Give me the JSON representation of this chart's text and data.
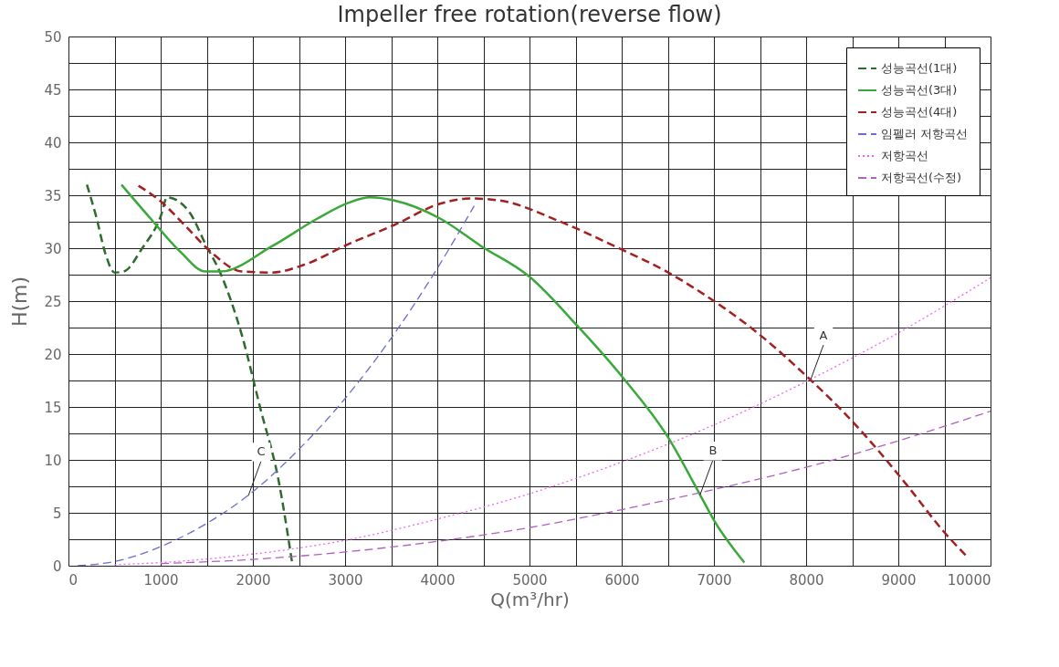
{
  "chart_data": {
    "type": "line",
    "title": "Impeller free rotation(reverse flow)",
    "xlabel": "Q(m³/hr)",
    "ylabel": "H(m)",
    "xlim": [
      0,
      10000
    ],
    "ylim": [
      0,
      50
    ],
    "xticks": [
      0,
      {
        "value": 500,
        "label": null
      },
      1000,
      {
        "value": 1500,
        "label": null
      },
      2000,
      {
        "value": 2500,
        "label": null
      },
      3000,
      {
        "value": 3500,
        "label": null
      },
      4000,
      {
        "value": 4500,
        "label": null
      },
      5000,
      {
        "value": 5500,
        "label": null
      },
      6000,
      {
        "value": 6500,
        "label": null
      },
      7000,
      {
        "value": 7500,
        "label": null
      },
      8000,
      {
        "value": 8500,
        "label": null
      },
      9000,
      {
        "value": 9500,
        "label": null
      },
      10000
    ],
    "yticks": [
      0,
      {
        "value": 2.5,
        "label": null
      },
      5,
      {
        "value": 7.5,
        "label": null
      },
      10,
      {
        "value": 12.5,
        "label": null
      },
      15,
      {
        "value": 17.5,
        "label": null
      },
      20,
      {
        "value": 22.5,
        "label": null
      },
      25,
      {
        "value": 27.5,
        "label": null
      },
      30,
      {
        "value": 32.5,
        "label": null
      },
      35,
      {
        "value": 37.5,
        "label": null
      },
      40,
      {
        "value": 42.5,
        "label": null
      },
      45,
      {
        "value": 47.5,
        "label": null
      },
      50
    ],
    "grid": true,
    "legend": "top right",
    "marker": "none",
    "series": [
      {
        "name": "성능곡선(1대)",
        "color": "#2e6b2e",
        "line_style": "dashed",
        "x": [
          200,
          300,
          400,
          500,
          600,
          800,
          1000,
          1070,
          1200,
          1320,
          1485,
          1650,
          1880,
          2080,
          2280,
          2425
        ],
        "values": [
          36,
          33,
          29.5,
          27.7,
          27.8,
          30,
          33,
          34.8,
          34.4,
          33.3,
          30.4,
          27.6,
          21.8,
          14.9,
          8,
          0.3
        ]
      },
      {
        "name": "성능곡선(3대)",
        "color": "#3aa83a",
        "line_style": "solid",
        "x": [
          574,
          890,
          1220,
          1485,
          1650,
          2210,
          2700,
          3040,
          3270,
          3535,
          4030,
          4475,
          5000,
          5515,
          6010,
          6505,
          6850,
          7000,
          7330
        ],
        "values": [
          36,
          32.8,
          29.6,
          27.8,
          27.8,
          30.2,
          32.8,
          34.3,
          34.8,
          34.5,
          32.8,
          30.2,
          27.3,
          22.7,
          17.8,
          12.1,
          6.7,
          4.3,
          0.3
        ]
      },
      {
        "name": "성능곡선(4대)",
        "color": "#a32020",
        "line_style": "dashed",
        "x": [
          760,
          990,
          1290,
          1550,
          1880,
          2210,
          2545,
          3040,
          3535,
          4030,
          4360,
          4680,
          5310,
          5920,
          6505,
          6950,
          7400,
          8030,
          8440,
          8810,
          9140,
          9475,
          9740
        ],
        "values": [
          35.9,
          34.5,
          31.9,
          29.6,
          27.8,
          27.7,
          28.4,
          30.4,
          32.2,
          34.2,
          34.7,
          34.5,
          32.6,
          30.2,
          27.7,
          25.3,
          22.5,
          17.7,
          14.2,
          10.6,
          7.1,
          3.4,
          0.9
        ]
      },
      {
        "name": "임펠러 저항곡선",
        "color": "#6b6bd0",
        "line_style": "dashed",
        "x": [
          100,
          500,
          1000,
          1500,
          2000,
          2500,
          3000,
          3500,
          4000,
          4400
        ],
        "values": [
          0,
          0.4,
          1.8,
          4,
          7,
          11,
          15.8,
          21.5,
          28.1,
          34
        ]
      },
      {
        "name": "저항곡선",
        "color": "#ee66ee",
        "line_style": "dotted",
        "x": [
          500,
          1000,
          2000,
          3000,
          4000,
          5000,
          6000,
          7000,
          8000,
          9000,
          10000
        ],
        "values": [
          0.1,
          0.3,
          1.1,
          2.4,
          4.4,
          6.8,
          9.8,
          13.3,
          17.4,
          22,
          27.2
        ]
      },
      {
        "name": "저항곡선(수정)",
        "color": "#b060c0",
        "line_style": "dashed",
        "x": [
          1000,
          2000,
          3000,
          4000,
          5000,
          6000,
          7000,
          8000,
          9000,
          10000
        ],
        "values": [
          0.2,
          0.6,
          1.3,
          2.3,
          3.6,
          5.3,
          7.2,
          9.3,
          11.8,
          14.6
        ]
      }
    ],
    "annotations": [
      {
        "text": "A",
        "x": 8050,
        "y": 17.6
      },
      {
        "text": "B",
        "x": 6850,
        "y": 6.7
      },
      {
        "text": "C",
        "x": 1950,
        "y": 6.6
      }
    ]
  }
}
